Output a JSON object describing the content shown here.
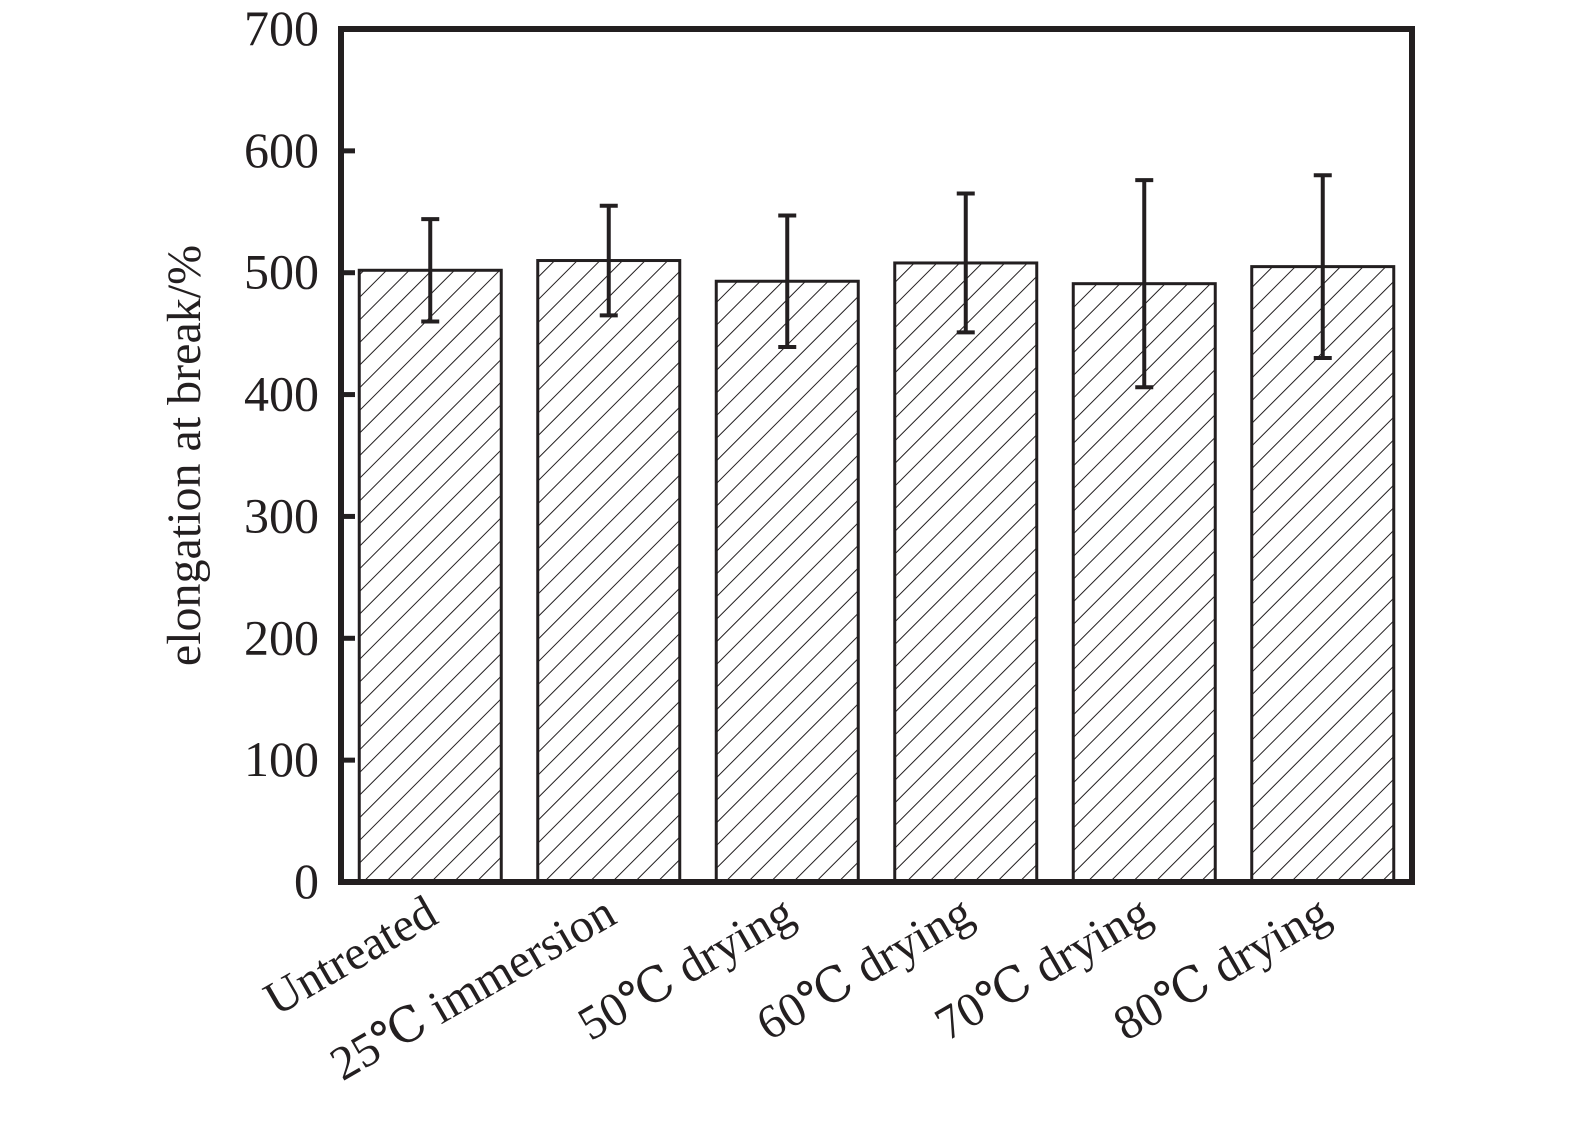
{
  "chart_data": {
    "type": "bar",
    "title": "",
    "xlabel": "",
    "ylabel": "elongation at break/%",
    "ylim": [
      0,
      700
    ],
    "yticks": [
      0,
      100,
      200,
      300,
      400,
      500,
      600,
      700
    ],
    "grid": false,
    "fill_pattern": "diagonal-hatch",
    "categories": [
      "Untreated",
      "25℃ immersion",
      "50℃ drying",
      "60℃ drying",
      "70℃ drying",
      "80℃ drying"
    ],
    "values": [
      502,
      510,
      493,
      508,
      491,
      505
    ],
    "error_bars": [
      42,
      45,
      54,
      57,
      85,
      75
    ],
    "colors": {
      "ink": "#231f20",
      "bar_fill": "#ffffff",
      "background": "#ffffff"
    }
  }
}
